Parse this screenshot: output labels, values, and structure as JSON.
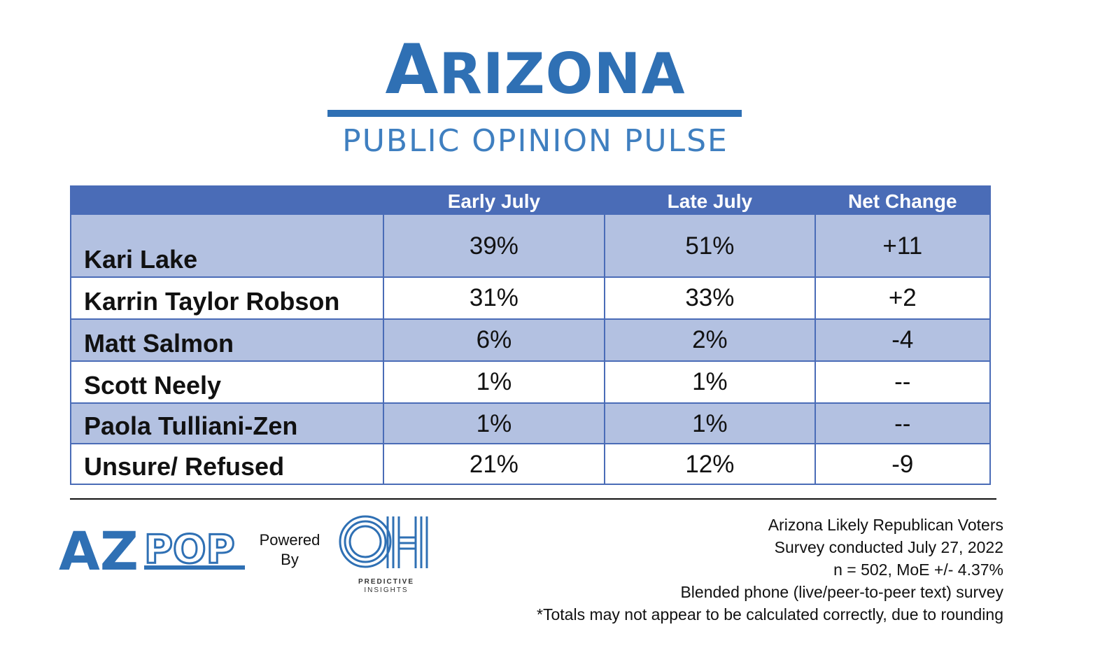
{
  "header": {
    "title": "ARIZONA",
    "subtitle": "PUBLIC OPINION PULSE"
  },
  "chart_data": {
    "type": "table",
    "columns": [
      "",
      "Early July",
      "Late July",
      "Net Change"
    ],
    "rows": [
      {
        "name": "Kari Lake",
        "early": "39%",
        "late": "51%",
        "change": "+11"
      },
      {
        "name": "Karrin Taylor Robson",
        "early": "31%",
        "late": "33%",
        "change": "+2"
      },
      {
        "name": "Matt Salmon",
        "early": "6%",
        "late": "2%",
        "change": "-4"
      },
      {
        "name": "Scott Neely",
        "early": "1%",
        "late": "1%",
        "change": "--"
      },
      {
        "name": "Paola Tulliani-Zen",
        "early": "1%",
        "late": "1%",
        "change": "--"
      },
      {
        "name": "Unsure/ Refused",
        "early": "21%",
        "late": "12%",
        "change": "-9"
      }
    ]
  },
  "footer": {
    "logo_text": "AZPOP",
    "powered_line1": "Powered",
    "powered_line2": "By",
    "partner_logo": "OH",
    "partner_line1": "PREDICTIVE",
    "partner_line2": "INSIGHTS",
    "notes": [
      "Arizona Likely Republican Voters",
      "Survey conducted July 27, 2022",
      "n = 502, MoE +/- 4.37%",
      "Blended phone (live/peer-to-peer text) survey",
      "*Totals may not appear to be calculated correctly, due to rounding"
    ]
  },
  "colors": {
    "brand_blue": "#2f70b4",
    "header_blue": "#4a6cb7",
    "shaded_row": "#b3c1e1"
  }
}
